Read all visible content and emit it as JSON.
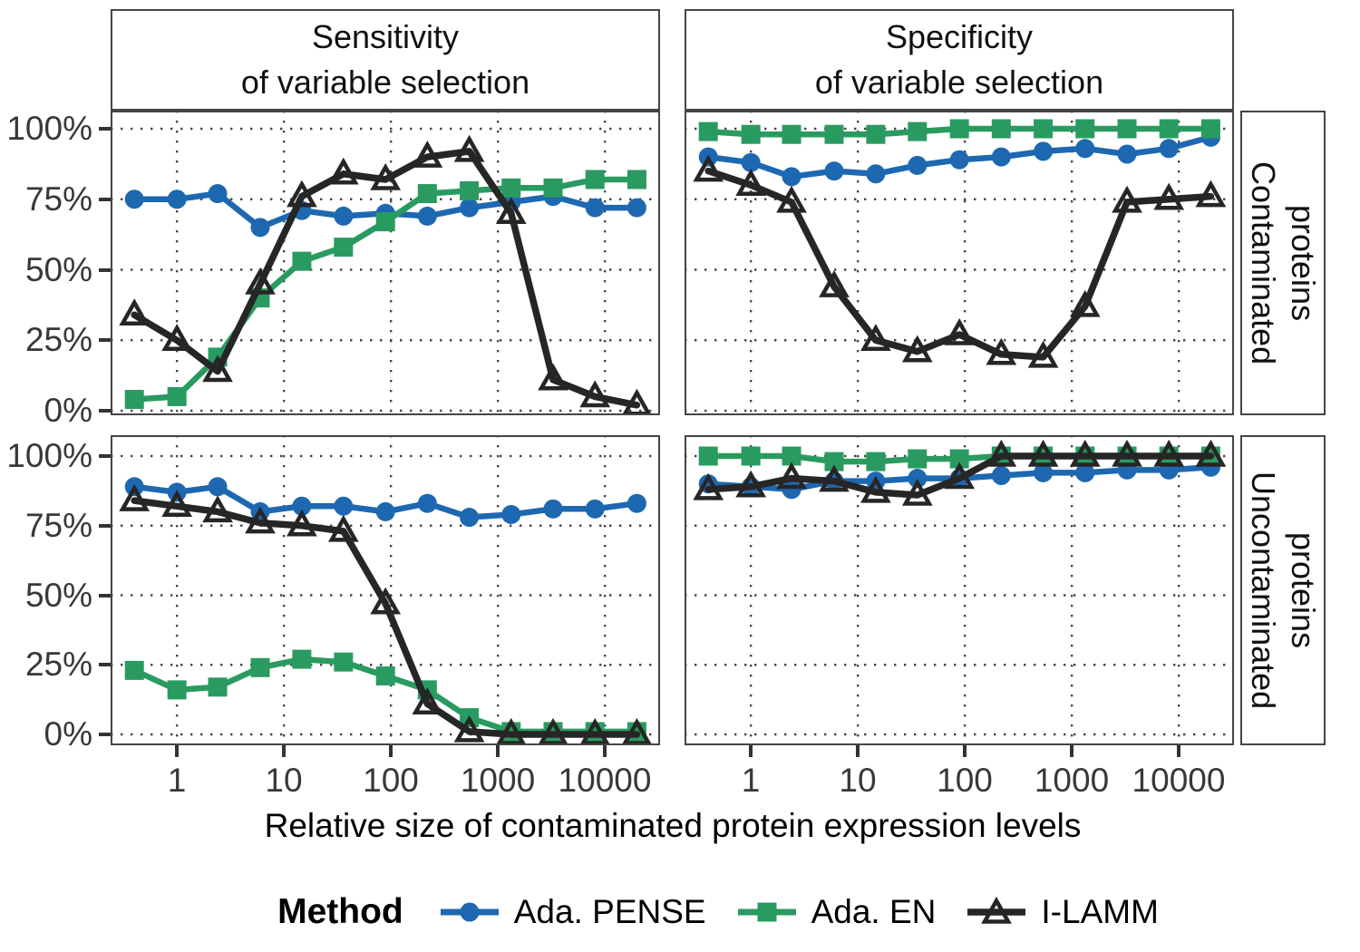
{
  "figure": {
    "col_strips": [
      {
        "line1": "Sensitivity",
        "line2": "of variable selection"
      },
      {
        "line1": "Specificity",
        "line2": "of variable selection"
      }
    ],
    "row_strips": [
      {
        "line1": "Contaminated",
        "line2": "proteins"
      },
      {
        "line1": "Uncontaminated",
        "line2": "proteins"
      }
    ]
  },
  "axes": {
    "x_title": "Relative size of contaminated protein expression levels",
    "x_tick_labels": [
      "1",
      "10",
      "100",
      "1000",
      "10000"
    ],
    "x_tick_values": [
      1,
      10,
      100,
      1000,
      10000
    ],
    "y_tick_labels": [
      "100%",
      "75%",
      "50%",
      "25%",
      "0%"
    ],
    "y_tick_values": [
      100,
      75,
      50,
      25,
      0
    ]
  },
  "legend": {
    "title": "Method",
    "entries": [
      {
        "label": "Ada. PENSE",
        "color": "#1d68b1",
        "marker": "circle"
      },
      {
        "label": "Ada. EN",
        "color": "#2a9b60",
        "marker": "square"
      },
      {
        "label": "I-LAMM",
        "color": "#262626",
        "marker": "triangle-open"
      }
    ]
  },
  "colors": {
    "ada_pense": "#1d68b1",
    "ada_en": "#2a9b60",
    "i_lamm": "#262626",
    "grid": "#474747",
    "panel_border": "#454545",
    "tick_text": "#383838"
  },
  "chart_data": {
    "type": "line",
    "x_scale": "log10",
    "x": [
      0.4,
      1,
      2.4,
      6,
      14.7,
      36,
      89,
      219,
      540,
      1330,
      3280,
      8080,
      19900
    ],
    "x_ticks": [
      1,
      10,
      100,
      1000,
      10000
    ],
    "y_ticks_percent": [
      0,
      25,
      50,
      75,
      100
    ],
    "ylim_percent": [
      0,
      100
    ],
    "grid": "dotted",
    "legend_position": "bottom",
    "panels": [
      {
        "facet_col": "Sensitivity of variable selection",
        "facet_row": "Contaminated proteins",
        "series": [
          {
            "name": "Ada. PENSE",
            "values_percent": [
              75,
              75,
              77,
              65,
              71,
              69,
              70,
              69,
              72,
              74,
              76,
              72,
              72
            ]
          },
          {
            "name": "Ada. EN",
            "values_percent": [
              4,
              5,
              19,
              40,
              53,
              58,
              67,
              77,
              78,
              79,
              79,
              82,
              82
            ]
          },
          {
            "name": "I-LAMM",
            "values_percent": [
              34,
              25,
              14,
              45,
              76,
              84,
              82,
              90,
              92,
              70,
              11,
              5,
              2
            ]
          }
        ]
      },
      {
        "facet_col": "Specificity of variable selection",
        "facet_row": "Contaminated proteins",
        "series": [
          {
            "name": "Ada. PENSE",
            "values_percent": [
              90,
              88,
              83,
              85,
              84,
              87,
              89,
              90,
              92,
              93,
              91,
              93,
              97
            ]
          },
          {
            "name": "Ada. EN",
            "values_percent": [
              99,
              98,
              98,
              98,
              98,
              99,
              100,
              100,
              100,
              100,
              100,
              100,
              100
            ]
          },
          {
            "name": "I-LAMM",
            "values_percent": [
              85,
              80,
              74,
              44,
              25,
              21,
              27,
              20,
              19,
              37,
              74,
              75,
              76
            ]
          }
        ]
      },
      {
        "facet_col": "Sensitivity of variable selection",
        "facet_row": "Uncontaminated proteins",
        "series": [
          {
            "name": "Ada. PENSE",
            "values_percent": [
              89,
              87,
              89,
              80,
              82,
              82,
              80,
              83,
              78,
              79,
              81,
              81,
              83
            ]
          },
          {
            "name": "Ada. EN",
            "values_percent": [
              23,
              16,
              17,
              24,
              27,
              26,
              21,
              16,
              6,
              1,
              1,
              1,
              1
            ]
          },
          {
            "name": "I-LAMM",
            "values_percent": [
              84,
              82,
              80,
              76,
              75,
              73,
              47,
              11,
              1,
              0,
              0,
              0,
              0
            ]
          }
        ]
      },
      {
        "facet_col": "Specificity of variable selection",
        "facet_row": "Uncontaminated proteins",
        "series": [
          {
            "name": "Ada. PENSE",
            "values_percent": [
              90,
              89,
              88,
              91,
              91,
              92,
              92,
              93,
              94,
              94,
              95,
              95,
              96
            ]
          },
          {
            "name": "Ada. EN",
            "values_percent": [
              100,
              100,
              100,
              98,
              98,
              99,
              99,
              100,
              100,
              100,
              100,
              100,
              100
            ]
          },
          {
            "name": "I-LAMM",
            "values_percent": [
              88,
              89,
              92,
              91,
              87,
              86,
              92,
              100,
              100,
              100,
              100,
              100,
              100
            ]
          }
        ]
      }
    ]
  }
}
